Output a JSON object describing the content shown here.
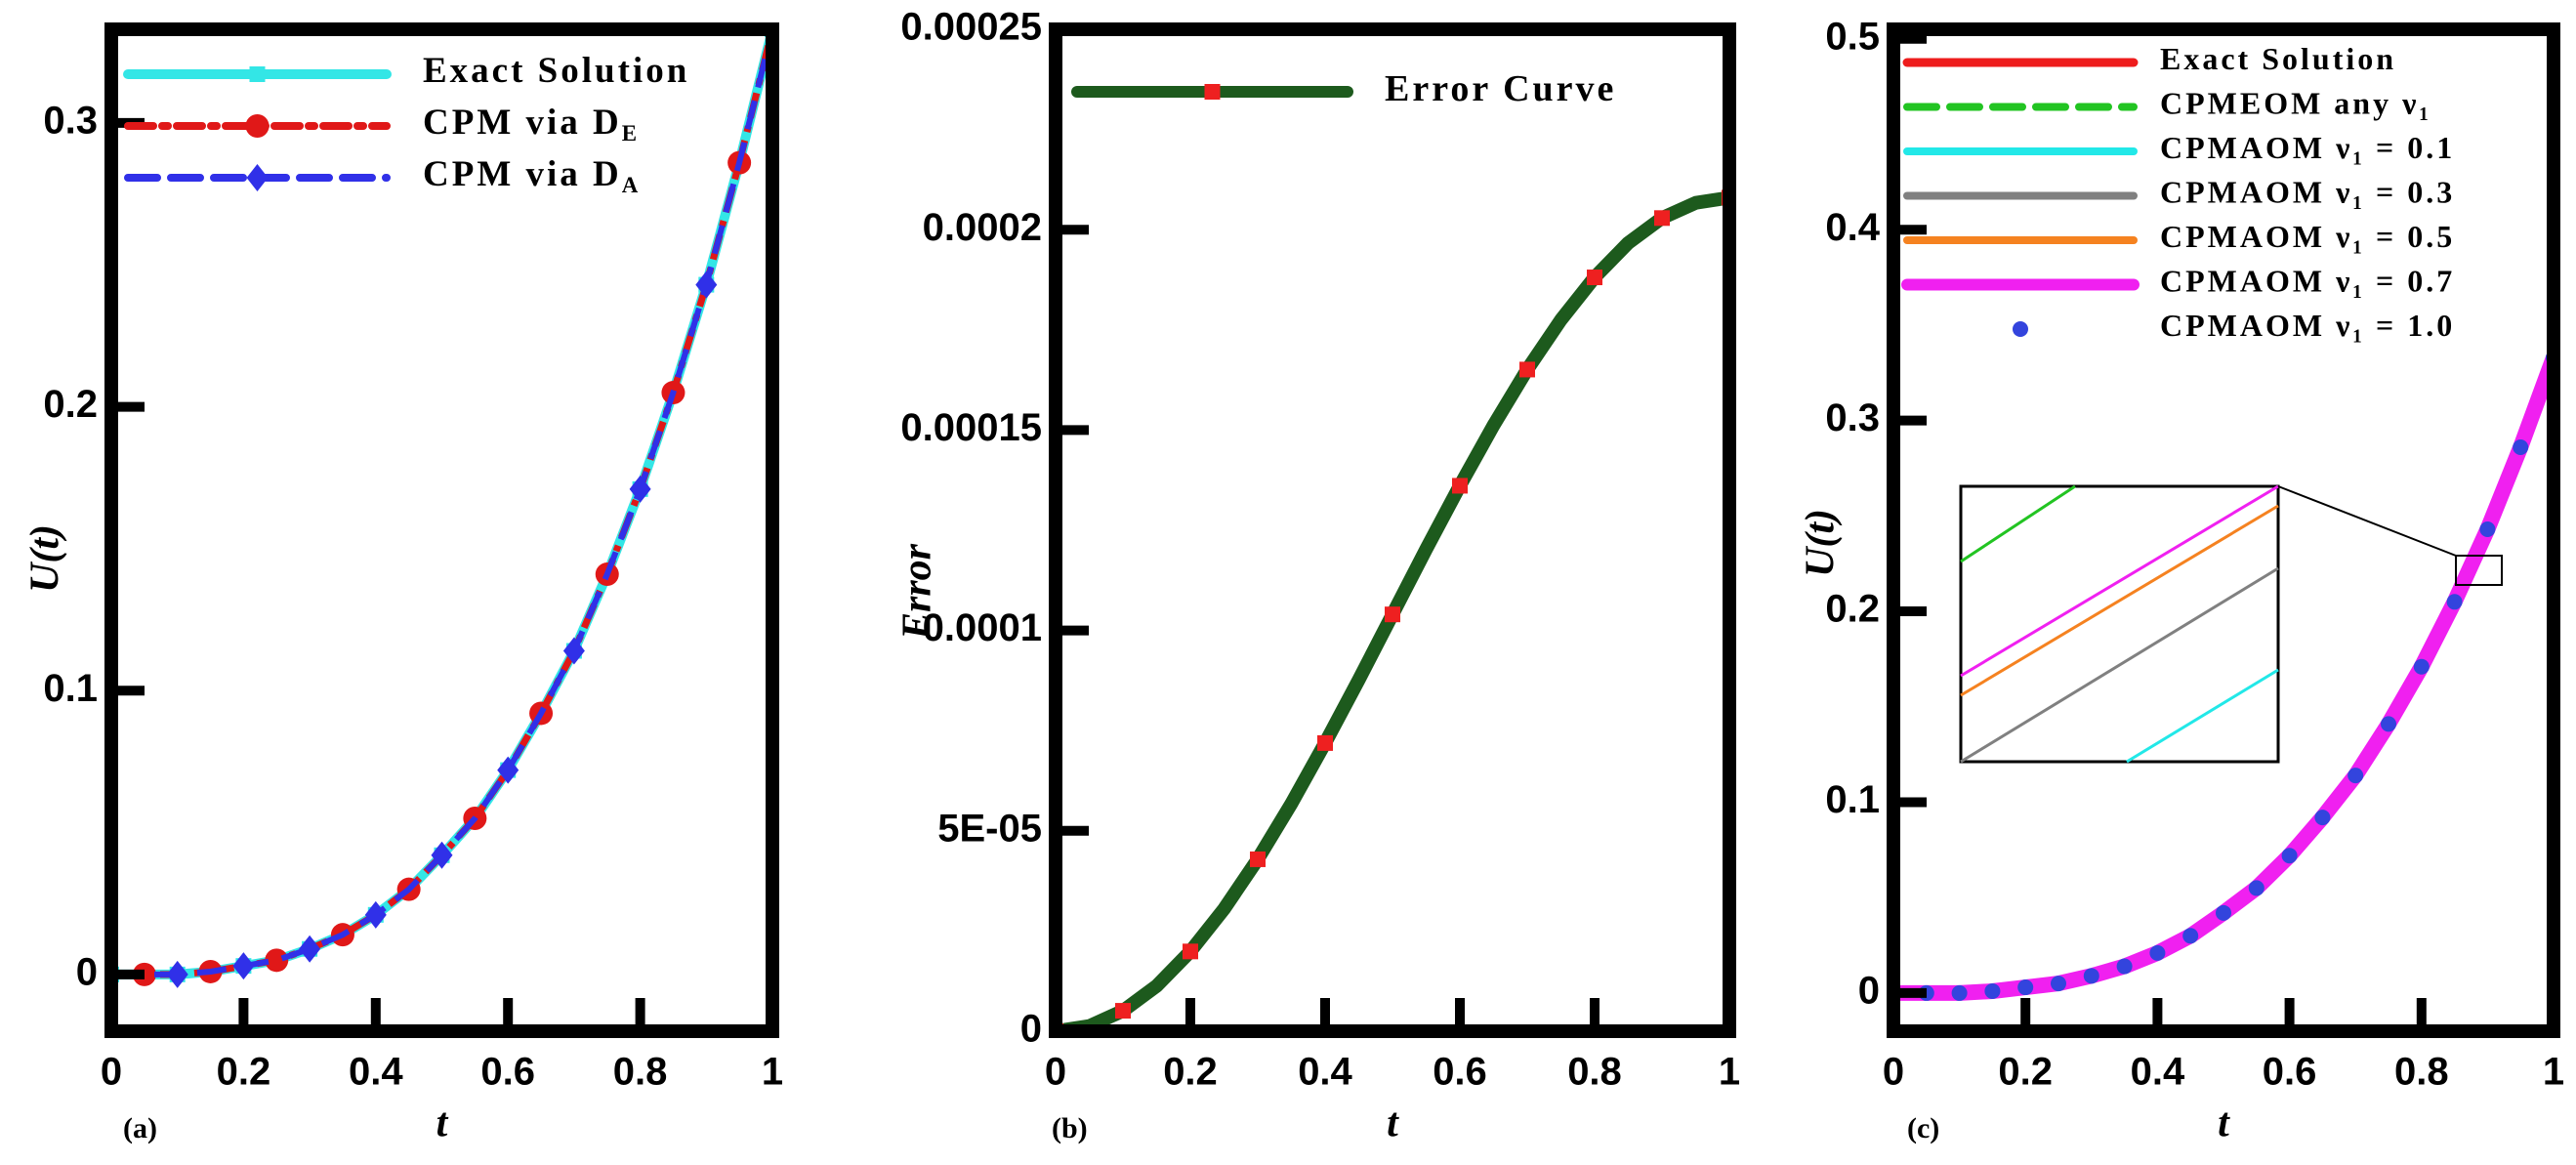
{
  "chart_data": [
    {
      "type": "line",
      "panel_label": "(a)",
      "xlabel": "t",
      "ylabel": "U(t)",
      "xlim": [
        0,
        1
      ],
      "ylim": [
        -0.02,
        0.333
      ],
      "xticks": [
        0,
        0.2,
        0.4,
        0.6,
        0.8,
        1
      ],
      "yticks": [
        0,
        0.1,
        0.2,
        0.3
      ],
      "x": [
        0,
        0.05,
        0.1,
        0.15,
        0.2,
        0.25,
        0.3,
        0.35,
        0.4,
        0.45,
        0.5,
        0.55,
        0.6,
        0.65,
        0.7,
        0.75,
        0.8,
        0.85,
        0.9,
        0.95,
        1
      ],
      "series": [
        {
          "name": "Exact Solution",
          "color": "#33e6e6",
          "dash": "solid",
          "marker": "square",
          "values": [
            0,
            0,
            0,
            0.001,
            0.003,
            0.005,
            0.009,
            0.014,
            0.021,
            0.03,
            0.042,
            0.055,
            0.072,
            0.092,
            0.114,
            0.141,
            0.171,
            0.205,
            0.243,
            0.286,
            0.333
          ]
        },
        {
          "name": "CPM via D",
          "name_sub": "E",
          "color": "#e01818",
          "dash": "dashdot",
          "marker": "circle",
          "values": [
            0,
            0,
            0,
            0.001,
            0.003,
            0.005,
            0.009,
            0.014,
            0.021,
            0.03,
            0.042,
            0.055,
            0.072,
            0.092,
            0.114,
            0.141,
            0.171,
            0.205,
            0.243,
            0.286,
            0.333
          ]
        },
        {
          "name": "CPM via D",
          "name_sub": "A",
          "color": "#3030e8",
          "dash": "dash",
          "marker": "diamond",
          "values": [
            0,
            0,
            0,
            0.001,
            0.003,
            0.005,
            0.009,
            0.014,
            0.021,
            0.03,
            0.042,
            0.055,
            0.072,
            0.092,
            0.114,
            0.141,
            0.171,
            0.205,
            0.243,
            0.286,
            0.333
          ]
        }
      ]
    },
    {
      "type": "line",
      "panel_label": "(b)",
      "xlabel": "t",
      "ylabel": "Error",
      "xlim": [
        0,
        1
      ],
      "ylim": [
        0,
        0.00025
      ],
      "xticks": [
        0,
        0.2,
        0.4,
        0.6,
        0.8,
        1
      ],
      "yticks": [
        0,
        {
          "value": 5e-05,
          "label": "5E-05"
        },
        0.0001,
        0.00015,
        0.0002,
        0.00025
      ],
      "x": [
        0,
        0.05,
        0.1,
        0.15,
        0.2,
        0.25,
        0.3,
        0.35,
        0.4,
        0.45,
        0.5,
        0.55,
        0.6,
        0.65,
        0.7,
        0.75,
        0.8,
        0.85,
        0.9,
        0.95,
        1
      ],
      "series": [
        {
          "name": "Error Curve",
          "color": "#1d5a1d",
          "dash": "solid",
          "marker": "square",
          "marker_color": "#ee2020",
          "values": [
            0,
            1.3e-06,
            5.1e-06,
            1.13e-05,
            1.99e-05,
            3.05e-05,
            4.29e-05,
            5.68e-05,
            7.19e-05,
            8.77e-05,
            0.000104,
            0.0001203,
            0.0001361,
            0.0001512,
            0.0001651,
            0.0001775,
            0.0001881,
            0.0001967,
            0.0002029,
            0.0002067,
            0.000208
          ]
        }
      ]
    },
    {
      "type": "line",
      "panel_label": "(c)",
      "xlabel": "t",
      "ylabel": "U(t)",
      "xlim": [
        0,
        1
      ],
      "ylim": [
        -0.02,
        0.505
      ],
      "xticks": [
        0,
        0.2,
        0.4,
        0.6,
        0.8,
        1
      ],
      "yticks": [
        0,
        0.1,
        0.2,
        0.3,
        0.4,
        0.5
      ],
      "x": [
        0,
        0.05,
        0.1,
        0.15,
        0.2,
        0.25,
        0.3,
        0.35,
        0.4,
        0.45,
        0.5,
        0.55,
        0.6,
        0.65,
        0.7,
        0.75,
        0.8,
        0.85,
        0.9,
        0.95,
        1
      ],
      "series": [
        {
          "name": "Exact Solution",
          "color": "#ee1c1c",
          "dash": "solid",
          "values": [
            0,
            0,
            0,
            0.001,
            0.003,
            0.005,
            0.009,
            0.014,
            0.021,
            0.03,
            0.042,
            0.055,
            0.072,
            0.092,
            0.114,
            0.141,
            0.171,
            0.205,
            0.243,
            0.286,
            0.333
          ]
        },
        {
          "name": "CPMEOM any ν₁",
          "color": "#22c422",
          "dash": "dash",
          "values": [
            0,
            0,
            0,
            0.001,
            0.003,
            0.005,
            0.009,
            0.014,
            0.021,
            0.03,
            0.042,
            0.055,
            0.072,
            0.092,
            0.114,
            0.141,
            0.171,
            0.205,
            0.243,
            0.286,
            0.333
          ]
        },
        {
          "name": "CPMAOM ν₁ = 0.1",
          "color": "#22e8e8",
          "dash": "solid",
          "values": [
            0,
            0,
            0,
            0.001,
            0.003,
            0.005,
            0.009,
            0.014,
            0.021,
            0.03,
            0.042,
            0.055,
            0.072,
            0.092,
            0.114,
            0.141,
            0.171,
            0.205,
            0.243,
            0.286,
            0.333
          ]
        },
        {
          "name": "CPMAOM ν₁ = 0.3",
          "color": "#808080",
          "dash": "solid",
          "values": [
            0,
            0,
            0,
            0.001,
            0.003,
            0.005,
            0.009,
            0.014,
            0.021,
            0.03,
            0.042,
            0.055,
            0.072,
            0.092,
            0.114,
            0.141,
            0.171,
            0.205,
            0.243,
            0.286,
            0.333
          ]
        },
        {
          "name": "CPMAOM ν₁ = 0.5",
          "color": "#f58220",
          "dash": "solid",
          "values": [
            0,
            0,
            0,
            0.001,
            0.003,
            0.005,
            0.009,
            0.014,
            0.021,
            0.03,
            0.042,
            0.055,
            0.072,
            0.092,
            0.114,
            0.141,
            0.171,
            0.205,
            0.243,
            0.286,
            0.333
          ]
        },
        {
          "name": "CPMAOM ν₁ = 0.7",
          "color": "#f020f0",
          "dash": "solid",
          "values": [
            0,
            0,
            0,
            0.001,
            0.003,
            0.005,
            0.009,
            0.014,
            0.021,
            0.03,
            0.042,
            0.055,
            0.072,
            0.092,
            0.114,
            0.141,
            0.171,
            0.205,
            0.243,
            0.286,
            0.333
          ]
        },
        {
          "name": "CPMAOM ν₁ = 1.0",
          "color": "#3344dd",
          "dash": "none",
          "marker": "dot",
          "values": [
            0,
            0,
            0,
            0.001,
            0.003,
            0.005,
            0.009,
            0.014,
            0.021,
            0.03,
            0.042,
            0.055,
            0.072,
            0.092,
            0.114,
            0.141,
            0.171,
            0.205,
            0.243,
            0.286,
            0.333
          ]
        }
      ]
    }
  ]
}
